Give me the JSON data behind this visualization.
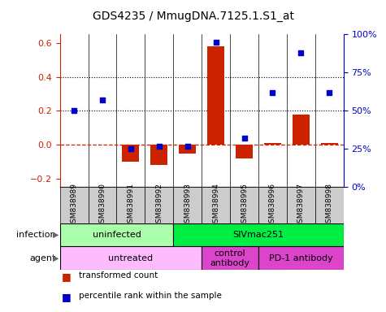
{
  "title": "GDS4235 / MmugDNA.7125.1.S1_at",
  "samples": [
    "GSM838989",
    "GSM838990",
    "GSM838991",
    "GSM838992",
    "GSM838993",
    "GSM838994",
    "GSM838995",
    "GSM838996",
    "GSM838997",
    "GSM838998"
  ],
  "bar_values": [
    0.0,
    0.0,
    -0.1,
    -0.12,
    -0.05,
    0.58,
    -0.08,
    0.01,
    0.18,
    0.01
  ],
  "dot_values": [
    50,
    57,
    25,
    27,
    27,
    95,
    32,
    62,
    88,
    62
  ],
  "bar_color": "#cc2200",
  "dot_color": "#0000cc",
  "ylim_left": [
    -0.25,
    0.65
  ],
  "ylim_right": [
    0,
    100
  ],
  "yticks_left": [
    -0.2,
    0.0,
    0.2,
    0.4,
    0.6
  ],
  "yticks_right": [
    0,
    25,
    50,
    75,
    100
  ],
  "yticklabels_right": [
    "0%",
    "25%",
    "50%",
    "75%",
    "100%"
  ],
  "hlines": [
    0.2,
    0.4
  ],
  "infection_groups": [
    {
      "label": "uninfected",
      "start": 0,
      "end": 4,
      "color": "#aaffaa"
    },
    {
      "label": "SIVmac251",
      "start": 4,
      "end": 10,
      "color": "#00ee44"
    }
  ],
  "agent_groups": [
    {
      "label": "untreated",
      "start": 0,
      "end": 5,
      "color": "#ffbbff"
    },
    {
      "label": "control\nantibody",
      "start": 5,
      "end": 7,
      "color": "#dd44cc"
    },
    {
      "label": "PD-1 antibody",
      "start": 7,
      "end": 10,
      "color": "#dd44cc"
    }
  ],
  "legend_items": [
    {
      "label": "transformed count",
      "color": "#cc2200"
    },
    {
      "label": "percentile rank within the sample",
      "color": "#0000cc"
    }
  ],
  "infection_label": "infection",
  "agent_label": "agent",
  "sample_bg": "#cccccc"
}
